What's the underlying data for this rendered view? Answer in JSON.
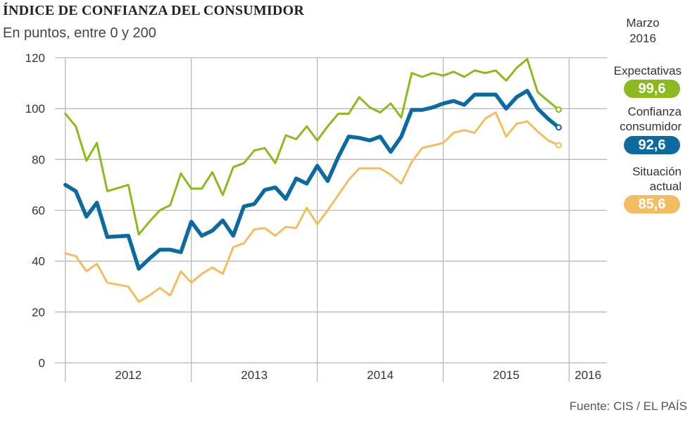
{
  "title": "ÍNDICE DE CONFIANZA DEL CONSUMIDOR",
  "subtitle": "En puntos, entre 0 y 200",
  "date_label": [
    "Marzo",
    "2016"
  ],
  "source": "Fuente: CIS / EL PAÍS",
  "colors": {
    "expectativas": "#8cb822",
    "confianza": "#0e6a9d",
    "situacion": "#f2bd62",
    "grid": "#b8b8b8"
  },
  "labels": {
    "expectativas": {
      "name": [
        "Expectativas"
      ],
      "value": "99,6"
    },
    "confianza": {
      "name": [
        "Confianza",
        "consumidor"
      ],
      "value": "92,6"
    },
    "situacion": {
      "name": [
        "Situación",
        "actual"
      ],
      "value": "85,6"
    }
  },
  "chart_data": {
    "type": "line",
    "title": "ÍNDICE DE CONFIANZA DEL CONSUMIDOR",
    "subtitle": "En puntos, entre 0 y 200",
    "ylim": [
      0,
      120
    ],
    "yticks": [
      0,
      20,
      40,
      60,
      80,
      100,
      120
    ],
    "year_labels": [
      "2012",
      "2013",
      "2014",
      "2015",
      "2016"
    ],
    "year_label_positions": [
      2012.5,
      2013.5,
      2014.5,
      2015.5,
      2016.15
    ],
    "year_boundaries": [
      2012,
      2013,
      2014,
      2015,
      2016
    ],
    "grid": true,
    "x": [
      2012.0,
      2012.083,
      2012.167,
      2012.25,
      2012.333,
      2012.5,
      2012.583,
      2012.667,
      2012.75,
      2012.833,
      2012.917,
      2013.0,
      2013.083,
      2013.167,
      2013.25,
      2013.333,
      2013.417,
      2013.5,
      2013.583,
      2013.667,
      2013.75,
      2013.833,
      2013.917,
      2014.0,
      2014.083,
      2014.167,
      2014.25,
      2014.333,
      2014.417,
      2014.5,
      2014.583,
      2014.667,
      2014.75,
      2014.833,
      2014.917,
      2015.0,
      2015.083,
      2015.167,
      2015.25,
      2015.333,
      2015.417,
      2015.5,
      2015.583,
      2015.667,
      2015.75,
      2015.833,
      2015.917,
      2016.0,
      2016.083,
      2016.167
    ],
    "series": [
      {
        "name": "Expectativas",
        "values": [
          98,
          93,
          79.5,
          86.5,
          67.5,
          70,
          50.5,
          55.5,
          60,
          62,
          74.5,
          68.5,
          68.5,
          75,
          66,
          77,
          78.5,
          83.5,
          84.5,
          78.5,
          89.5,
          88,
          93,
          87.5,
          93,
          98,
          98,
          104.5,
          100.5,
          98.5,
          102,
          96.5,
          114,
          112.5,
          114,
          113,
          114.5,
          112.5,
          115,
          114,
          115,
          111,
          116,
          119.5,
          106.5,
          103,
          99.6,
          99.6,
          99.6,
          99.6
        ]
      },
      {
        "name": "Confianza consumidor",
        "values": [
          70,
          67.5,
          57.5,
          63,
          49.5,
          50,
          37,
          41,
          44.5,
          44.5,
          43.5,
          55.5,
          50,
          52,
          56,
          50,
          61.5,
          62.5,
          68,
          69,
          64.5,
          72.5,
          70.5,
          77.5,
          71.5,
          81,
          89,
          88.5,
          87.5,
          89,
          83,
          89,
          99.5,
          99.5,
          100.5,
          102,
          103,
          101.5,
          105.5,
          105.5,
          105.5,
          100,
          104.5,
          107,
          100,
          96,
          92.6,
          92.6,
          92.6,
          92.6
        ]
      },
      {
        "name": "Situación actual",
        "values": [
          43,
          42,
          36,
          39,
          31.5,
          30,
          24,
          26.5,
          29.5,
          26.5,
          36,
          31.5,
          35,
          37.5,
          35,
          45.5,
          47,
          52.5,
          53,
          50,
          53.5,
          53,
          61,
          54.5,
          60,
          66,
          72,
          76.5,
          76.5,
          76.5,
          74,
          70.5,
          79,
          84.5,
          85.5,
          86.5,
          90.5,
          91.5,
          90.5,
          96,
          98.5,
          89,
          94,
          95,
          91,
          87.5,
          85.6,
          85.6,
          85.6,
          85.6
        ]
      }
    ],
    "end_values": {
      "Expectativas": 99.6,
      "Confianza consumidor": 92.6,
      "Situación actual": 85.6
    }
  }
}
